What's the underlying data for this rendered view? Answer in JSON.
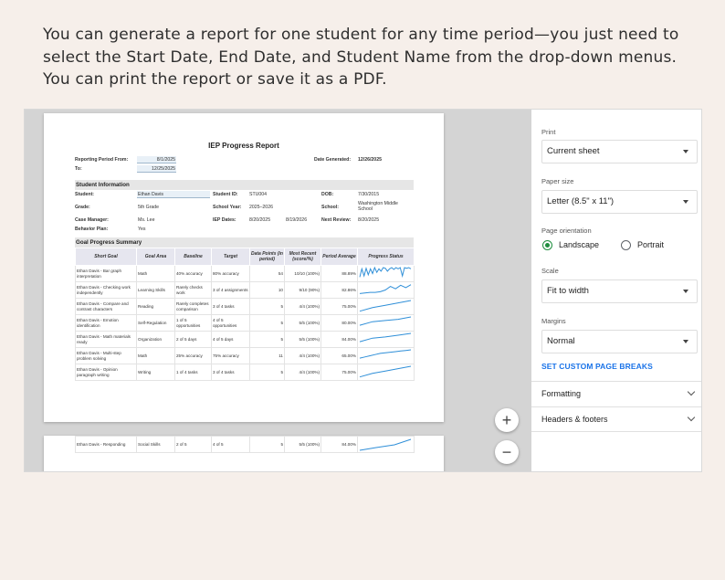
{
  "caption": "You can generate a report for one student for any time period—you just need to select the Start Date, End Date, and Student Name from the drop-down menus. You can print the report or save it as a PDF.",
  "report": {
    "title": "IEP Progress Report",
    "reporting_from_label": "Reporting Period From:",
    "reporting_from": "8/1/2025",
    "to_label": "To:",
    "to": "12/25/2025",
    "date_generated_label": "Date Generated:",
    "date_generated": "12/26/2025",
    "student_info_heading": "Student Information",
    "fields": {
      "student_label": "Student:",
      "student": "Ethan Davis",
      "grade_label": "Grade:",
      "grade": "5th Grade",
      "case_manager_label": "Case Manager:",
      "case_manager": "Ms. Lee",
      "behavior_plan_label": "Behavior Plan:",
      "behavior_plan": "Yes",
      "student_id_label": "Student ID:",
      "student_id": "STU004",
      "school_year_label": "School Year:",
      "school_year": "2025–2026",
      "iep_dates_label": "IEP Dates:",
      "iep_start": "8/20/2025",
      "iep_end": "8/19/2026",
      "dob_label": "DOB:",
      "dob": "7/30/2015",
      "school_label": "School:",
      "school": "Washington Middle School",
      "next_review_label": "Next Review:",
      "next_review": "8/20/2025"
    },
    "goal_heading": "Goal Progress Summary",
    "columns": [
      "Short Goal",
      "Goal Area",
      "Baseline",
      "Target",
      "Data Points (in period)",
      "Most Recent (score/%)",
      "Period Average",
      "Progress Status"
    ],
    "rows": [
      {
        "goal": "Ethan Davis - Bar graph interpretation",
        "area": "Math",
        "baseline": "40% accuracy",
        "target": "80% accuracy",
        "points": "54",
        "recent": "10/10 (100%)",
        "avg": "88.89%"
      },
      {
        "goal": "Ethan Davis - Checking work independently",
        "area": "Learning Skills",
        "baseline": "Rarely checks work",
        "target": "3 of 4 assignments",
        "points": "10",
        "recent": "9/10 (90%)",
        "avg": "82.86%"
      },
      {
        "goal": "Ethan Davis - Compare and contrast characters",
        "area": "Reading",
        "baseline": "Rarely completes comparison",
        "target": "3 of 4 tasks",
        "points": "5",
        "recent": "4/4 (100%)",
        "avg": "75.00%"
      },
      {
        "goal": "Ethan Davis - Emotion identification",
        "area": "Self-Regulation",
        "baseline": "1 of 5 opportunities",
        "target": "4 of 5 opportunities",
        "points": "5",
        "recent": "5/5 (100%)",
        "avg": "80.00%"
      },
      {
        "goal": "Ethan Davis - Math materials ready",
        "area": "Organization",
        "baseline": "2 of 5 days",
        "target": "4 of 5 days",
        "points": "5",
        "recent": "5/5 (100%)",
        "avg": "84.00%"
      },
      {
        "goal": "Ethan Davis - Multi-step problem solving",
        "area": "Math",
        "baseline": "25% accuracy",
        "target": "75% accuracy",
        "points": "11",
        "recent": "4/4 (100%)",
        "avg": "65.00%"
      },
      {
        "goal": "Ethan Davis - Opinion paragraph writing",
        "area": "Writing",
        "baseline": "1 of 4 tasks",
        "target": "3 of 4 tasks",
        "points": "5",
        "recent": "4/4 (100%)",
        "avg": "75.00%"
      }
    ],
    "page2_row": {
      "goal": "Ethan Davis - Responding",
      "area": "Social Skills",
      "baseline": "2 of 5",
      "target": "4 of 5",
      "points": "5",
      "recent": "5/5 (100%)",
      "avg": "84.00%"
    }
  },
  "sparklines": [
    [
      0.2,
      0.9,
      0.3,
      0.95,
      0.4,
      0.9,
      0.5,
      1,
      0.6,
      0.9,
      0.7,
      1,
      0.95,
      0.7,
      0.9,
      1,
      0.85,
      1,
      0.9,
      1,
      0.3,
      1,
      0.95,
      1,
      0.9
    ],
    [
      0.2,
      0.25,
      0.3,
      0.3,
      0.35,
      0.5,
      0.8,
      0.6,
      0.9,
      0.7,
      0.95
    ],
    [
      0.1,
      0.4,
      0.6,
      0.8,
      1
    ],
    [
      0.3,
      0.6,
      0.7,
      0.8,
      1
    ],
    [
      0.3,
      0.6,
      0.7,
      0.85,
      1
    ],
    [
      0.3,
      0.4,
      0.5,
      0.6,
      0.7,
      0.75,
      0.8,
      0.85,
      0.9,
      0.95,
      1
    ],
    [
      0.1,
      0.4,
      0.6,
      0.8,
      1
    ]
  ],
  "zoom": {
    "in": "+",
    "out": "−"
  },
  "print_panel": {
    "print_label": "Print",
    "print_value": "Current sheet",
    "paper_label": "Paper size",
    "paper_value": "Letter (8.5\" x 11\")",
    "orientation_label": "Page orientation",
    "landscape": "Landscape",
    "portrait": "Portrait",
    "scale_label": "Scale",
    "scale_value": "Fit to width",
    "margins_label": "Margins",
    "margins_value": "Normal",
    "custom_breaks": "SET CUSTOM PAGE BREAKS",
    "formatting": "Formatting",
    "headers_footers": "Headers & footers"
  }
}
